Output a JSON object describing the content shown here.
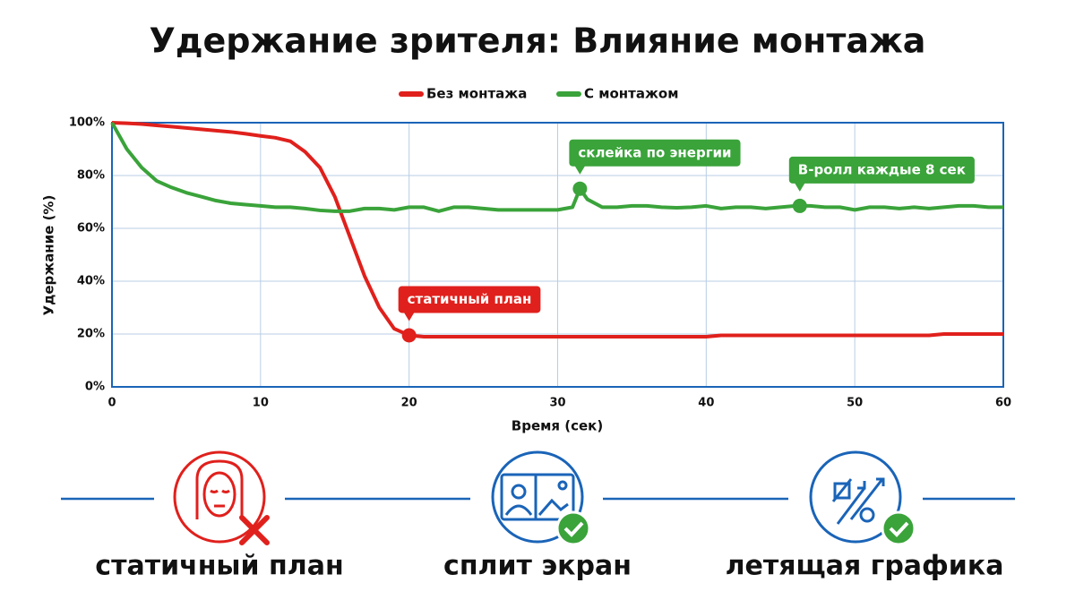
{
  "chart_data": {
    "type": "line",
    "title": "Удержание зрителя: Влияние монтажа",
    "xlabel": "Время (сек)",
    "ylabel": "Удержание (%)",
    "x": [
      0,
      1,
      2,
      3,
      4,
      5,
      6,
      7,
      8,
      9,
      10,
      11,
      12,
      13,
      14,
      15,
      16,
      17,
      18,
      19,
      20,
      21,
      22,
      23,
      24,
      25,
      26,
      27,
      28,
      29,
      30,
      31,
      31.5,
      32,
      33,
      34,
      35,
      36,
      37,
      38,
      39,
      40,
      41,
      42,
      43,
      44,
      45,
      46,
      47,
      48,
      49,
      50,
      51,
      52,
      53,
      54,
      55,
      56,
      57,
      58,
      59,
      60
    ],
    "series": [
      {
        "name": "Без монтажа",
        "color": "#e0201c",
        "values": [
          100,
          99.8,
          99.5,
          99,
          98.5,
          98,
          97.5,
          97,
          96.5,
          95.8,
          95,
          94.3,
          93,
          89,
          83,
          72,
          57,
          42,
          30,
          22,
          19.5,
          19,
          19,
          19,
          19,
          19,
          19,
          19,
          19,
          19,
          19,
          19,
          19,
          19,
          19,
          19,
          19,
          19,
          19,
          19,
          19,
          19,
          19.5,
          19.5,
          19.5,
          19.5,
          19.5,
          19.5,
          19.5,
          19.5,
          19.5,
          19.5,
          19.5,
          19.5,
          19.5,
          19.5,
          19.5,
          20,
          20,
          20,
          20,
          20
        ]
      },
      {
        "name": "С монтажом",
        "color": "#3aa33a",
        "values": [
          100,
          90,
          83,
          78,
          75.5,
          73.5,
          72,
          70.5,
          69.5,
          69,
          68.5,
          68,
          68,
          67.5,
          66.8,
          66.5,
          66.5,
          67.5,
          67.5,
          67,
          68,
          68,
          66.5,
          68,
          68,
          67.5,
          67,
          67,
          67,
          67,
          67,
          68,
          75,
          71,
          68,
          68,
          68.5,
          68.5,
          68,
          67.8,
          68,
          68.5,
          67.5,
          68,
          68,
          67.5,
          68,
          68.5,
          68.5,
          68,
          68,
          67,
          68,
          68,
          67.5,
          68,
          67.5,
          68,
          68.5,
          68.5,
          68,
          68
        ]
      }
    ],
    "xlim": [
      0,
      60
    ],
    "ylim": [
      0,
      100
    ],
    "xticks": [
      0,
      10,
      20,
      30,
      40,
      50,
      60
    ],
    "yticks": [
      {
        "value": 0,
        "label": "0%"
      },
      {
        "value": 20,
        "label": "20%"
      },
      {
        "value": 40,
        "label": "40%"
      },
      {
        "value": 60,
        "label": "60%"
      },
      {
        "value": 80,
        "label": "80%"
      },
      {
        "value": 100,
        "label": "100%"
      }
    ],
    "grid": true,
    "annotations": [
      {
        "text": "статичный план",
        "x": 20,
        "y": 19.5,
        "color": "#e0201c"
      },
      {
        "text": "склейка по энергии",
        "x": 31.5,
        "y": 75,
        "color": "#3aa33a"
      },
      {
        "text": "B-ролл каждые 8 сек",
        "x": 46.3,
        "y": 68.5,
        "color": "#3aa33a"
      }
    ]
  },
  "features": [
    {
      "label": "статичный план"
    },
    {
      "label": "сплит экран"
    },
    {
      "label": "летящая графика"
    }
  ]
}
